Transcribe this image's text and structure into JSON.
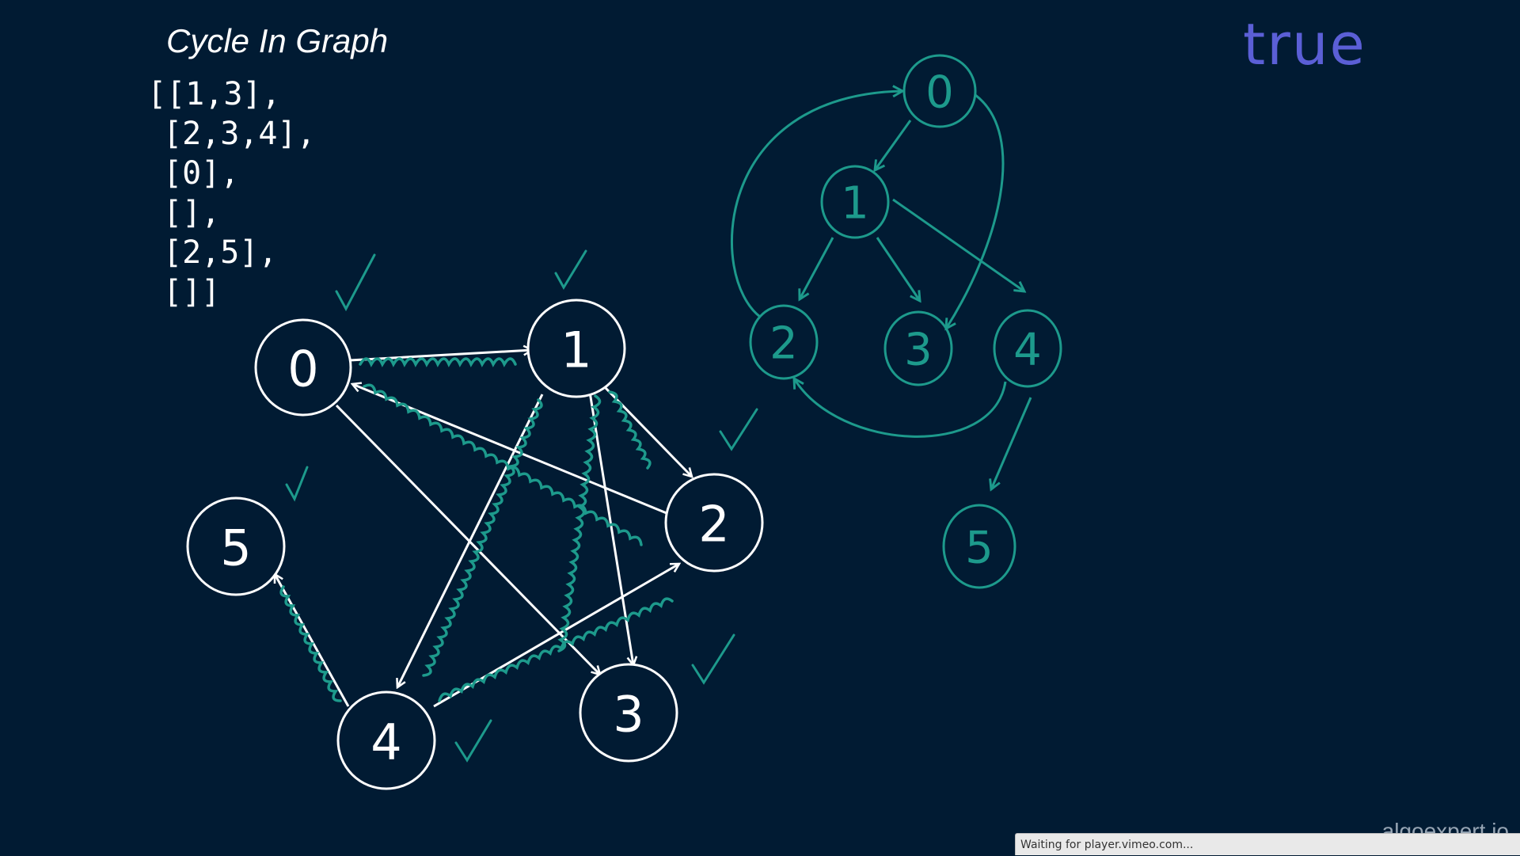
{
  "header": {
    "title": "Cycle In Graph"
  },
  "adjacency_list": [
    "[[1,3],",
    "[2,3,4],",
    "[0],",
    "[],",
    "[2,5],",
    "[]]"
  ],
  "result": {
    "value": "true"
  },
  "colors": {
    "background": "#011b33",
    "white": "#ffffff",
    "teal": "#1d9a8c",
    "result": "#5b5fd6"
  },
  "left_graph": {
    "nodes": [
      {
        "id": "0",
        "label": "0"
      },
      {
        "id": "1",
        "label": "1"
      },
      {
        "id": "2",
        "label": "2"
      },
      {
        "id": "3",
        "label": "3"
      },
      {
        "id": "4",
        "label": "4"
      },
      {
        "id": "5",
        "label": "5"
      }
    ],
    "edges": [
      {
        "from": "0",
        "to": "1",
        "visited": true
      },
      {
        "from": "0",
        "to": "3",
        "visited": false
      },
      {
        "from": "1",
        "to": "2",
        "visited": true
      },
      {
        "from": "1",
        "to": "3",
        "visited": true
      },
      {
        "from": "1",
        "to": "4",
        "visited": true
      },
      {
        "from": "2",
        "to": "0",
        "visited": true
      },
      {
        "from": "4",
        "to": "2",
        "visited": true
      },
      {
        "from": "4",
        "to": "5",
        "visited": true
      }
    ],
    "checked_nodes": [
      "0",
      "1",
      "2",
      "3",
      "4",
      "5"
    ]
  },
  "right_tree": {
    "nodes": [
      {
        "id": "0",
        "label": "0"
      },
      {
        "id": "1",
        "label": "1"
      },
      {
        "id": "2",
        "label": "2"
      },
      {
        "id": "3",
        "label": "3"
      },
      {
        "id": "4",
        "label": "4"
      },
      {
        "id": "5",
        "label": "5"
      }
    ],
    "edges": [
      {
        "from": "0",
        "to": "1"
      },
      {
        "from": "0",
        "to": "3"
      },
      {
        "from": "1",
        "to": "2"
      },
      {
        "from": "1",
        "to": "3"
      },
      {
        "from": "1",
        "to": "4"
      },
      {
        "from": "2",
        "to": "0"
      },
      {
        "from": "4",
        "to": "2"
      },
      {
        "from": "4",
        "to": "5"
      }
    ]
  },
  "footer": {
    "watermark": "algoexpert.io",
    "status": "Waiting for player.vimeo.com..."
  }
}
